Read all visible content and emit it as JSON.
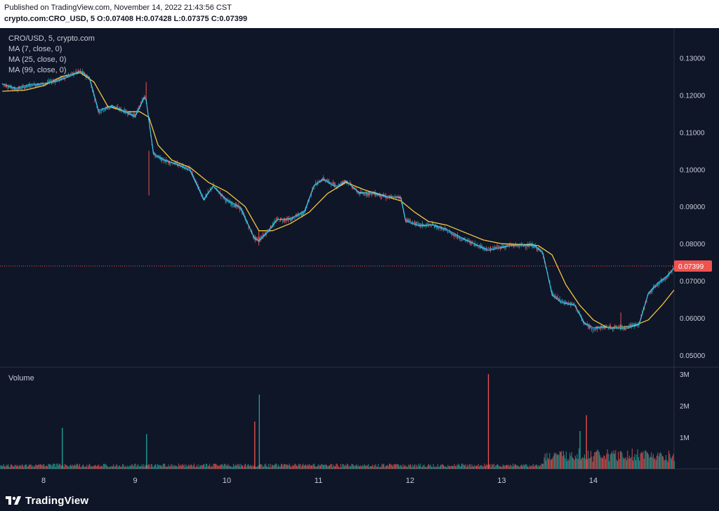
{
  "header": {
    "published": "Published on TradingView.com, November 14, 2022 21:43:56 CST",
    "symbol": "crypto.com:CRO_USD, 5",
    "ohlc": "O:0.07408 H:0.07428 L:0.07375 C:0.07399"
  },
  "legend": {
    "title": "CRO/USD, 5, crypto.com",
    "ma1": "MA (7, close, 0)",
    "ma2": "MA (25, close, 0)",
    "ma3": "MA (99, close, 0)"
  },
  "volume_label": "Volume",
  "footer": {
    "brand": "TradingView"
  },
  "colors": {
    "background": "#0f1628",
    "up": "#26a69a",
    "down": "#ef5350",
    "ma_fast": "#2196f3",
    "ma_mid": "#4dd0e1",
    "ma_slow": "#f5c542",
    "price_tag": "#ef5350"
  },
  "chart_data": [
    {
      "type": "line",
      "title": "CRO/USD, 5, crypto.com",
      "x_ticks": [
        "8",
        "9",
        "10",
        "11",
        "12",
        "13",
        "14"
      ],
      "y_ticks": [
        "0.13000",
        "0.12000",
        "0.11000",
        "0.10000",
        "0.09000",
        "0.08000",
        "0.07000",
        "0.06000",
        "0.05000"
      ],
      "ylim": [
        0.047,
        0.138
      ],
      "last_price_label": "0.07399",
      "last_price": 0.07399,
      "series": [
        {
          "name": "MA (7, close, 0)",
          "x": [
            7.55,
            7.7,
            7.85,
            8.0,
            8.15,
            8.3,
            8.4,
            8.5,
            8.6,
            8.75,
            8.9,
            9.0,
            9.1,
            9.12,
            9.2,
            9.3,
            9.45,
            9.6,
            9.75,
            9.85,
            10.0,
            10.15,
            10.3,
            10.35,
            10.45,
            10.55,
            10.7,
            10.85,
            10.95,
            11.05,
            11.2,
            11.3,
            11.45,
            11.6,
            11.75,
            11.9,
            11.95,
            12.1,
            12.25,
            12.4,
            12.55,
            12.7,
            12.85,
            12.95,
            13.1,
            13.25,
            13.35,
            13.45,
            13.55,
            13.65,
            13.8,
            13.9,
            14.0,
            14.1,
            14.2,
            14.35,
            14.5,
            14.6,
            14.7,
            14.8,
            14.88
          ],
          "y": [
            0.123,
            0.1215,
            0.1225,
            0.123,
            0.124,
            0.1255,
            0.1265,
            0.1245,
            0.1155,
            0.117,
            0.1155,
            0.1145,
            0.1195,
            0.1185,
            0.104,
            0.1025,
            0.1015,
            0.1,
            0.092,
            0.0955,
            0.0915,
            0.0895,
            0.0815,
            0.081,
            0.0835,
            0.0865,
            0.0865,
            0.0885,
            0.0955,
            0.0975,
            0.0955,
            0.097,
            0.0935,
            0.0935,
            0.0925,
            0.0925,
            0.0865,
            0.085,
            0.085,
            0.0835,
            0.0815,
            0.08,
            0.0785,
            0.079,
            0.0795,
            0.0795,
            0.0795,
            0.0775,
            0.0665,
            0.0645,
            0.0635,
            0.0585,
            0.057,
            0.0575,
            0.0575,
            0.0575,
            0.0585,
            0.0665,
            0.069,
            0.071,
            0.0735
          ]
        },
        {
          "name": "MA (25, close, 0)",
          "x": [
            7.55,
            7.8,
            8.0,
            8.2,
            8.4,
            8.55,
            8.7,
            8.9,
            9.05,
            9.15,
            9.25,
            9.4,
            9.6,
            9.8,
            10.0,
            10.2,
            10.35,
            10.5,
            10.7,
            10.9,
            11.1,
            11.3,
            11.5,
            11.7,
            11.9,
            12.05,
            12.2,
            12.4,
            12.6,
            12.8,
            13.0,
            13.2,
            13.4,
            13.55,
            13.7,
            13.85,
            14.0,
            14.15,
            14.3,
            14.45,
            14.6,
            14.75,
            14.88
          ],
          "y": [
            0.121,
            0.1213,
            0.1225,
            0.125,
            0.126,
            0.1235,
            0.117,
            0.1155,
            0.1155,
            0.114,
            0.1065,
            0.1025,
            0.1005,
            0.0965,
            0.094,
            0.09,
            0.0835,
            0.0835,
            0.0855,
            0.0885,
            0.0935,
            0.0965,
            0.0945,
            0.093,
            0.0915,
            0.0885,
            0.086,
            0.085,
            0.083,
            0.081,
            0.08,
            0.0798,
            0.0795,
            0.077,
            0.069,
            0.0635,
            0.0595,
            0.0575,
            0.0575,
            0.058,
            0.0595,
            0.0635,
            0.0675
          ]
        }
      ]
    },
    {
      "type": "bar",
      "title": "Volume",
      "y_ticks": [
        "3M",
        "2M",
        "1M"
      ],
      "ylim": [
        0,
        3.2
      ],
      "spikes": [
        {
          "x": 8.2,
          "value": 1.3,
          "direction": "up"
        },
        {
          "x": 9.12,
          "value": 1.1,
          "direction": "up"
        },
        {
          "x": 10.35,
          "value": 2.35,
          "direction": "up"
        },
        {
          "x": 10.3,
          "value": 1.5,
          "direction": "down"
        },
        {
          "x": 12.85,
          "value": 3.0,
          "direction": "down"
        },
        {
          "x": 13.92,
          "value": 1.7,
          "direction": "down"
        },
        {
          "x": 13.85,
          "value": 1.2,
          "direction": "up"
        }
      ]
    }
  ]
}
